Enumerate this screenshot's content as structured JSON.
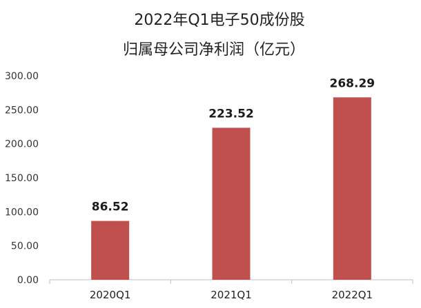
{
  "chart_data": {
    "type": "bar",
    "title_line1": "2022年Q1电子50成份股",
    "title_line2": "归属母公司净利润（亿元）",
    "categories": [
      "2020Q1",
      "2021Q1",
      "2022Q1"
    ],
    "values": [
      86.52,
      223.52,
      268.29
    ],
    "data_labels": [
      "86.52",
      "223.52",
      "268.29"
    ],
    "y_ticks": [
      "0.00",
      "50.00",
      "100.00",
      "150.00",
      "200.00",
      "250.00",
      "300.00"
    ],
    "ylim": [
      0,
      300
    ],
    "bar_color": "#c0504d",
    "grid": false,
    "legend": "none"
  }
}
